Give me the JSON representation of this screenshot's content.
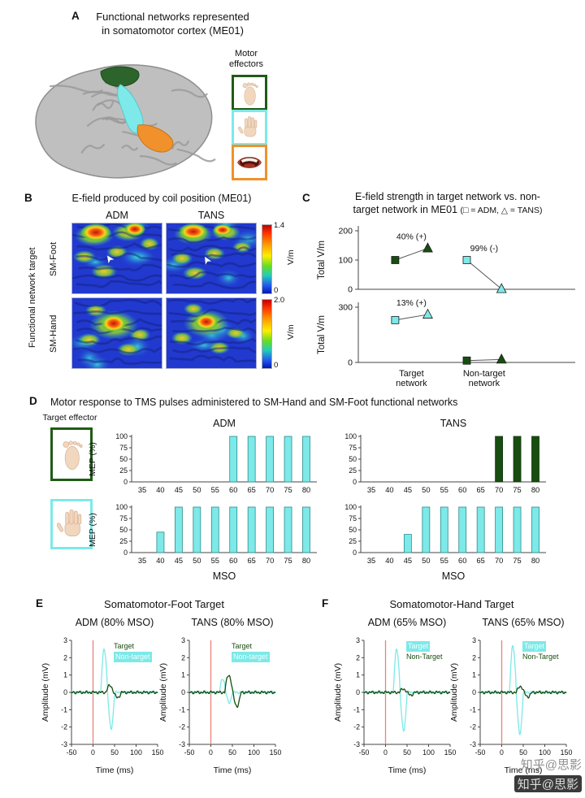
{
  "colors": {
    "cyan": "#7de9e8",
    "green": "#174d10",
    "orange": "#f0912c",
    "pulse_red": "#e8837a",
    "skin": "#f2d7bf",
    "watermark_gray": "#8f8f8f"
  },
  "watermark": {
    "line1": "知乎@思影",
    "line2": "知乎@思影"
  },
  "panels": {
    "A": {
      "letter": "A",
      "title1": "Functional networks represented",
      "title2": "in somatomotor cortex (ME01)",
      "effectors_label1": "Motor",
      "effectors_label2": "effectors",
      "effectors": [
        {
          "name": "foot",
          "border_key": "green"
        },
        {
          "name": "hand",
          "border_key": "cyan"
        },
        {
          "name": "mouth",
          "border_key": "orange"
        }
      ]
    },
    "B": {
      "letter": "B",
      "title": "E-field produced by coil position (ME01)",
      "col1": "ADM",
      "col2": "TANS",
      "row1": "SM-Foot",
      "row2": "SM-Hand",
      "axis_label": "Functional network target",
      "colorbar1": {
        "max": "1.4",
        "min": "0",
        "unit": "V/m"
      },
      "colorbar2": {
        "max": "2.0",
        "min": "0",
        "unit": "V/m"
      }
    },
    "C": {
      "letter": "C",
      "title1": "E-field strength in target network vs. non-",
      "title2a": "target network in ME01 ",
      "title2b": "(□ = ADM, △ = TANS)"
    },
    "D": {
      "letter": "D",
      "title": "Motor response to TMS pulses administered to SM-Hand and SM-Foot functional networks",
      "target_effector_label": "Target effector",
      "col1": "ADM",
      "col2": "TANS"
    },
    "E": {
      "letter": "E",
      "title": "Somatomotor-Foot Target",
      "legend": [
        {
          "label": "Target",
          "style": "green"
        },
        {
          "label": "Non-target",
          "style": "cyan-highlight"
        }
      ]
    },
    "F": {
      "letter": "F",
      "title": "Somatomotor-Hand Target",
      "legend": [
        {
          "label": "Target",
          "style": "cyan-highlight"
        },
        {
          "label": "Non-Target",
          "style": "green"
        }
      ]
    }
  },
  "chart_data": {
    "panelC": [
      {
        "type": "scatter",
        "ylabel": "Total V/m",
        "ylim": [
          0,
          200
        ],
        "yticks": [
          0,
          100,
          200
        ],
        "categories": [
          "Target network",
          "Non-target network"
        ],
        "marker_legend": "square = ADM, triangle = TANS",
        "groups": [
          {
            "category": "Target network",
            "color_key": "green",
            "square": 100,
            "triangle": 140,
            "annotation": "40% (+)"
          },
          {
            "category": "Non-target network",
            "color_key": "cyan",
            "square": 100,
            "triangle": 1,
            "annotation": "99% (-)"
          }
        ]
      },
      {
        "type": "scatter",
        "ylabel": "Total V/m",
        "ylim": [
          0,
          300
        ],
        "yticks": [
          0,
          300
        ],
        "categories": [
          "Target network",
          "Non-target network"
        ],
        "groups": [
          {
            "category": "Target network",
            "color_key": "cyan",
            "square": 230,
            "triangle": 260,
            "annotation": "13% (+)"
          },
          {
            "category": "Non-target network",
            "color_key": "green",
            "square": 10,
            "triangle": 16,
            "annotation": ""
          }
        ]
      }
    ],
    "panelD": {
      "type": "bar",
      "ylabel": "MEP (%)",
      "xlabel": "MSO",
      "yticks": [
        0,
        25,
        50,
        75,
        100
      ],
      "categories": [
        35,
        40,
        45,
        50,
        55,
        60,
        65,
        70,
        75,
        80
      ],
      "charts": [
        {
          "id": "sm-foot-adm",
          "target": "SM-Foot",
          "muscle": "ADM",
          "color_key": "cyan",
          "values": [
            0,
            0,
            0,
            0,
            0,
            100,
            100,
            100,
            100,
            100
          ]
        },
        {
          "id": "sm-foot-tans",
          "target": "SM-Foot",
          "muscle": "TANS",
          "color_key": "green",
          "values": [
            0,
            0,
            0,
            0,
            0,
            0,
            0,
            100,
            100,
            100
          ]
        },
        {
          "id": "sm-hand-adm",
          "target": "SM-Hand",
          "muscle": "ADM",
          "color_key": "cyan",
          "values": [
            0,
            45,
            100,
            100,
            100,
            100,
            100,
            100,
            100,
            100
          ]
        },
        {
          "id": "sm-hand-tans",
          "target": "SM-Hand",
          "muscle": "TANS",
          "color_key": "cyan",
          "values": [
            0,
            0,
            40,
            100,
            100,
            100,
            100,
            100,
            100,
            100
          ]
        }
      ]
    },
    "waveforms": {
      "type": "line",
      "ylabel": "Amplitude (mV)",
      "xlabel": "Time (ms)",
      "ylim": [
        -3,
        3
      ],
      "xlim": [
        -50,
        150
      ],
      "yticks": [
        -3,
        -2,
        -1,
        0,
        1,
        2,
        3
      ],
      "xticks": [
        -50,
        0,
        50,
        100,
        150
      ],
      "pulse_time_ms": 0,
      "plots": [
        {
          "id": "foot-target-adm",
          "subtitle": "ADM (80% MSO)",
          "traces": [
            {
              "name": "ADM (non-target)",
              "color_key": "cyan",
              "peak_mv": 2.5,
              "trough_mv": -2.1,
              "latency_ms": 18,
              "duration_ms": 32
            },
            {
              "name": "TANS (target)",
              "color_key": "green",
              "peak_mv": 0.4,
              "trough_mv": -0.3,
              "latency_ms": 30,
              "duration_ms": 36
            }
          ]
        },
        {
          "id": "foot-target-tans",
          "subtitle": "TANS (80% MSO)",
          "traces": [
            {
              "name": "ADM (non-target)",
              "color_key": "cyan",
              "peak_mv": 0.8,
              "trough_mv": -0.6,
              "latency_ms": 20,
              "duration_ms": 30
            },
            {
              "name": "TANS (target)",
              "color_key": "green",
              "peak_mv": 1.0,
              "trough_mv": -0.8,
              "latency_ms": 32,
              "duration_ms": 38
            }
          ]
        },
        {
          "id": "hand-target-adm",
          "subtitle": "ADM (65% MSO)",
          "traces": [
            {
              "name": "ADM (target)",
              "color_key": "cyan",
              "peak_mv": 2.5,
              "trough_mv": -2.2,
              "latency_ms": 18,
              "duration_ms": 32
            },
            {
              "name": "TANS (non-target)",
              "color_key": "green",
              "peak_mv": 0.2,
              "trough_mv": -0.15,
              "latency_ms": 32,
              "duration_ms": 36
            }
          ]
        },
        {
          "id": "hand-target-tans",
          "subtitle": "TANS (65% MSO)",
          "traces": [
            {
              "name": "ADM (target)",
              "color_key": "cyan",
              "peak_mv": 2.7,
              "trough_mv": -2.4,
              "latency_ms": 18,
              "duration_ms": 32
            },
            {
              "name": "TANS (non-target)",
              "color_key": "green",
              "peak_mv": 0.35,
              "trough_mv": -0.25,
              "latency_ms": 34,
              "duration_ms": 36
            }
          ]
        }
      ]
    }
  }
}
